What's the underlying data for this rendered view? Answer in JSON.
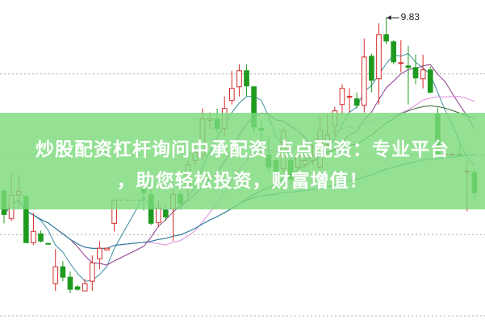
{
  "banner": {
    "line1": "炒股配资杠杆询问中承配资 点点配资：专业平台",
    "line2": "，助您轻松投资，财富增值！"
  },
  "chart_data": {
    "type": "candlestick",
    "title": "",
    "xlabel": "",
    "ylabel": "",
    "ylim": [
      6.03,
      10.05
    ],
    "grid": true,
    "grid_style": "dotted horizontal",
    "high_marker": {
      "label": "9.83",
      "value": 9.83
    },
    "colors": {
      "up": "#d42a2a",
      "down": "#1f9a1f",
      "ma5": "#3a8fa0",
      "ma10": "#8a3a8a",
      "ma20": "#e08ae0",
      "ma30": "#2e6a2e",
      "ma60": "#2a7fa8"
    },
    "ma_periods": [
      5,
      10,
      20,
      30,
      60
    ],
    "candles": [
      [
        7.67,
        7.7,
        7.27,
        7.38
      ],
      [
        7.33,
        7.9,
        7.3,
        7.62
      ],
      [
        7.62,
        7.87,
        7.45,
        7.67
      ],
      [
        7.61,
        7.61,
        7.03,
        7.03
      ],
      [
        7.03,
        7.4,
        7.0,
        7.17
      ],
      [
        7.14,
        7.18,
        7.03,
        7.05
      ],
      [
        7.02,
        7.03,
        7.01,
        7.01
      ],
      [
        6.52,
        6.95,
        6.43,
        6.73
      ],
      [
        6.73,
        6.8,
        6.55,
        6.6
      ],
      [
        6.6,
        6.67,
        6.4,
        6.45
      ],
      [
        6.48,
        6.5,
        6.43,
        6.45
      ],
      [
        6.43,
        6.58,
        6.43,
        6.52
      ],
      [
        6.55,
        6.87,
        6.43,
        6.78
      ],
      [
        6.83,
        7.05,
        6.7,
        6.96
      ],
      [
        6.94,
        6.97,
        6.93,
        6.96
      ],
      [
        7.27,
        7.56,
        7.17,
        7.56
      ],
      null,
      null,
      null,
      [
        7.7,
        7.75,
        7.43,
        7.65
      ],
      [
        7.63,
        7.7,
        7.25,
        7.27
      ],
      [
        7.28,
        7.55,
        7.22,
        7.46
      ],
      [
        7.43,
        7.5,
        7.3,
        7.35
      ],
      [
        7.45,
        7.7,
        7.05,
        7.63
      ],
      [
        7.63,
        7.67,
        7.47,
        7.52
      ],
      [
        7.72,
        8.05,
        7.6,
        8.0
      ],
      [
        8.05,
        8.25,
        8.0,
        8.15
      ],
      [
        8.12,
        8.7,
        8.05,
        8.57
      ],
      [
        8.55,
        8.65,
        8.45,
        8.57
      ],
      [
        8.57,
        8.7,
        8.4,
        8.45
      ],
      [
        8.45,
        8.85,
        8.35,
        8.7
      ],
      [
        8.8,
        9.17,
        8.75,
        8.95
      ],
      [
        8.97,
        9.25,
        8.85,
        9.17
      ],
      [
        9.17,
        9.25,
        8.85,
        8.98
      ],
      [
        8.97,
        8.97,
        8.4,
        8.47
      ],
      [
        8.45,
        8.55,
        8.1,
        8.43
      ],
      [
        8.12,
        8.35,
        7.9,
        7.97
      ],
      [
        8.05,
        8.1,
        7.83,
        7.88
      ],
      [
        7.95,
        8.47,
        7.9,
        8.42
      ],
      [
        8.05,
        8.1,
        7.75,
        7.82
      ],
      [
        7.97,
        8.2,
        7.93,
        8.12
      ],
      [
        8.0,
        8.15,
        7.95,
        8.05
      ],
      [
        8.05,
        8.25,
        8.0,
        8.1
      ],
      [
        7.97,
        8.6,
        7.9,
        8.43
      ],
      [
        8.25,
        8.63,
        8.2,
        8.37
      ],
      [
        8.48,
        8.72,
        8.35,
        8.67
      ],
      [
        8.75,
        9.0,
        8.62,
        8.95
      ],
      [
        8.84,
        8.95,
        8.65,
        8.85
      ],
      [
        8.82,
        8.9,
        8.7,
        8.74
      ],
      [
        8.74,
        9.57,
        8.65,
        9.34
      ],
      [
        9.35,
        9.38,
        8.9,
        9.05
      ],
      [
        9.07,
        9.76,
        8.75,
        9.62
      ],
      [
        9.62,
        9.83,
        9.5,
        9.54
      ],
      [
        9.53,
        9.55,
        9.25,
        9.28
      ],
      [
        9.27,
        9.55,
        9.15,
        9.27
      ],
      [
        9.23,
        9.48,
        8.75,
        9.21
      ],
      [
        9.21,
        9.37,
        9.0,
        9.08
      ],
      [
        9.07,
        9.37,
        8.95,
        9.18
      ],
      [
        9.18,
        9.22,
        8.9,
        8.9
      ],
      [
        8.63,
        8.71,
        8.13,
        8.13
      ],
      [
        8.13,
        8.15,
        8.11,
        8.13
      ],
      [
        8.13,
        8.15,
        8.11,
        8.13
      ],
      [
        8.13,
        8.25,
        8.12,
        8.12
      ],
      [
        7.92,
        8.05,
        7.42,
        7.92
      ],
      [
        7.9,
        7.95,
        7.55,
        7.65
      ]
    ],
    "candle_fields": [
      "open",
      "high",
      "low",
      "close"
    ]
  }
}
